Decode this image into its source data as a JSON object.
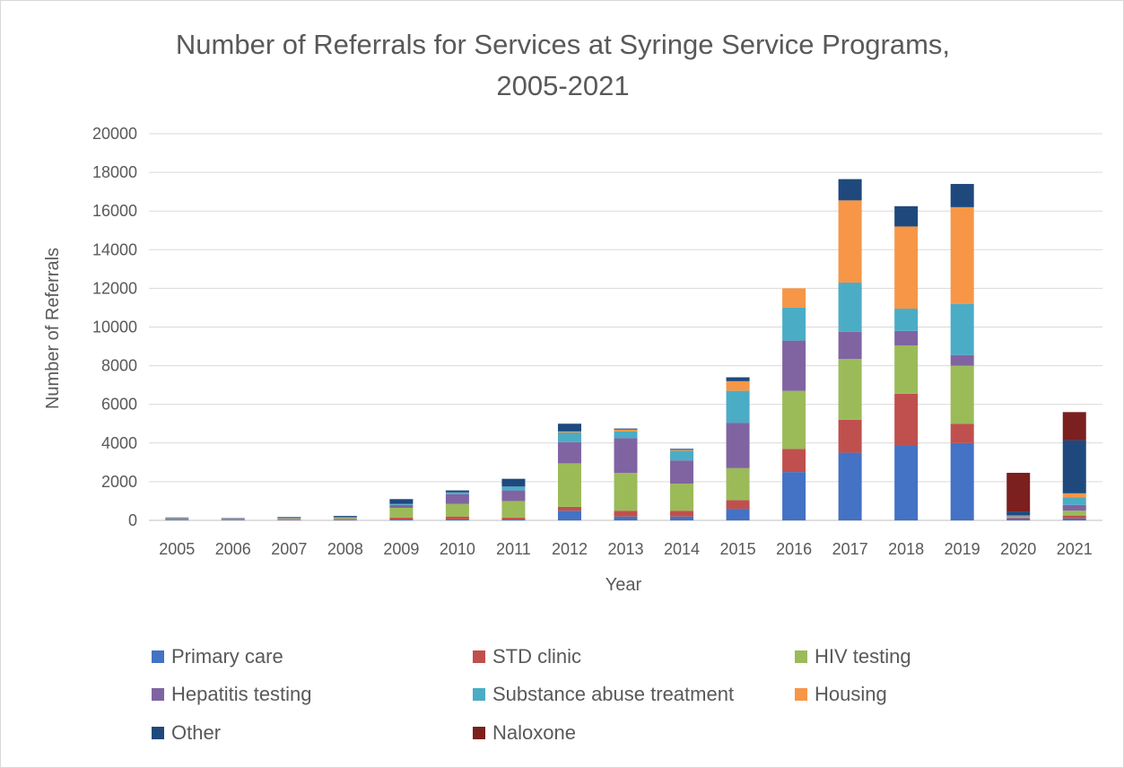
{
  "chart_data": {
    "type": "bar",
    "stacked": true,
    "title_lines": [
      "Number of Referrals for Services at Syringe Service Programs,",
      "2005-2021"
    ],
    "xlabel": "Year",
    "ylabel": "Number of Referrals",
    "ylim": [
      0,
      20000
    ],
    "yticks": [
      "0",
      "2000",
      "4000",
      "6000",
      "8000",
      "10000",
      "12000",
      "14000",
      "16000",
      "18000",
      "20000"
    ],
    "grid": true,
    "legend_position": "bottom",
    "categories": [
      "2005",
      "2006",
      "2007",
      "2008",
      "2009",
      "2010",
      "2011",
      "2012",
      "2013",
      "2014",
      "2015",
      "2016",
      "2017",
      "2018",
      "2019",
      "2020",
      "2021"
    ],
    "series": [
      {
        "name": "Primary care",
        "color": "#4472c4",
        "values": [
          20,
          20,
          20,
          30,
          50,
          50,
          50,
          500,
          200,
          200,
          600,
          2500,
          3500,
          3850,
          4000,
          100,
          100
        ]
      },
      {
        "name": "STD clinic",
        "color": "#c0504d",
        "values": [
          20,
          20,
          20,
          30,
          100,
          150,
          100,
          200,
          300,
          300,
          450,
          1200,
          1700,
          2700,
          1000,
          50,
          150
        ]
      },
      {
        "name": "HIV testing",
        "color": "#9bbb59",
        "values": [
          30,
          20,
          60,
          60,
          500,
          650,
          850,
          2250,
          1950,
          1400,
          1650,
          3000,
          3150,
          2500,
          3000,
          50,
          250
        ]
      },
      {
        "name": "Hepatitis testing",
        "color": "#8064a2",
        "values": [
          40,
          30,
          40,
          40,
          150,
          500,
          550,
          1100,
          1800,
          1200,
          2350,
          2600,
          1400,
          750,
          550,
          30,
          300
        ]
      },
      {
        "name": "Substance abuse treatment",
        "color": "#4bacc6",
        "values": [
          20,
          10,
          20,
          20,
          50,
          100,
          200,
          500,
          350,
          500,
          1650,
          1700,
          2550,
          1150,
          2650,
          30,
          400
        ]
      },
      {
        "name": "Housing",
        "color": "#f79646",
        "values": [
          0,
          0,
          0,
          0,
          0,
          0,
          0,
          50,
          100,
          50,
          500,
          1000,
          4250,
          4250,
          5000,
          0,
          200
        ]
      },
      {
        "name": "Other",
        "color": "#1f497d",
        "values": [
          20,
          20,
          20,
          50,
          250,
          100,
          400,
          400,
          50,
          50,
          200,
          0,
          1100,
          1050,
          1200,
          200,
          2750
        ]
      },
      {
        "name": "Naloxone",
        "color": "#7b1f1f",
        "values": [
          0,
          0,
          0,
          0,
          0,
          0,
          0,
          0,
          0,
          0,
          0,
          0,
          0,
          0,
          0,
          2000,
          1450
        ]
      }
    ]
  }
}
